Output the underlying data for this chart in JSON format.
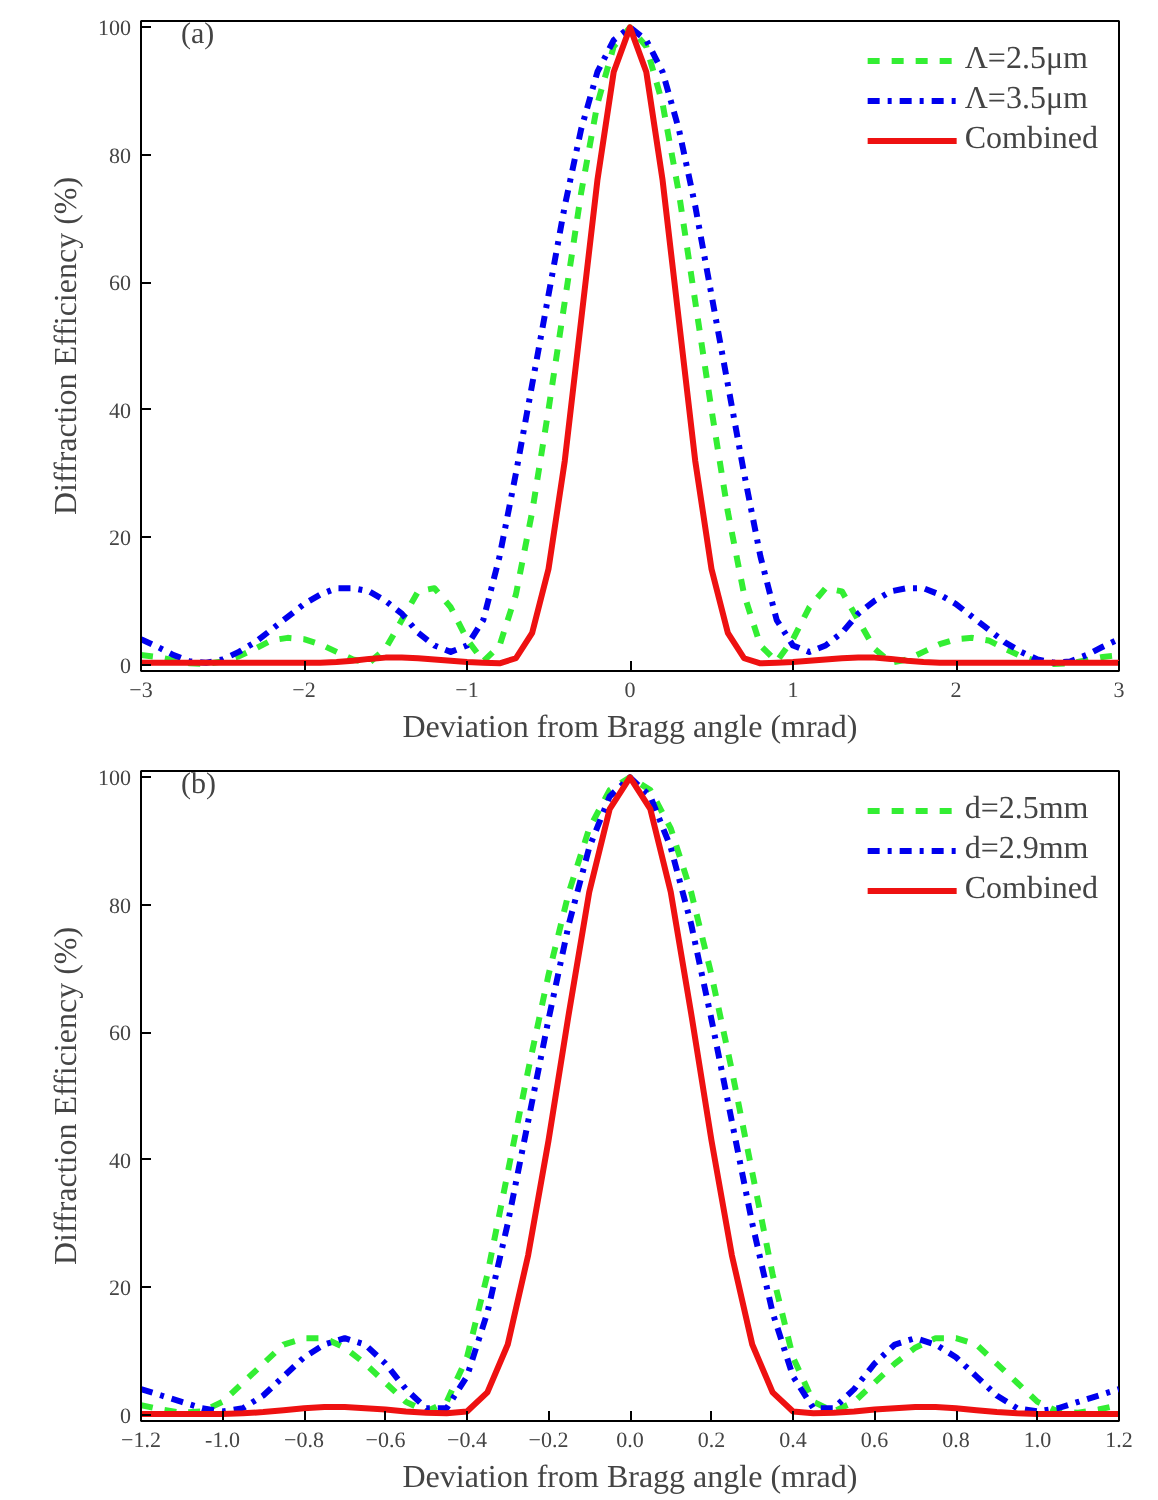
{
  "chart_data": [
    {
      "type": "line",
      "annotations": [
        "(a)"
      ],
      "xlabel": "Deviation from Bragg angle (mrad)",
      "ylabel": "Diffraction Efficiency (%)",
      "x": [
        -3,
        -2.9,
        -2.8,
        -2.7,
        -2.6,
        -2.5,
        -2.4,
        -2.3,
        -2.2,
        -2.1,
        -2,
        -1.9,
        -1.8,
        -1.7,
        -1.6,
        -1.5,
        -1.4,
        -1.3,
        -1.2,
        -1.1,
        -1,
        -0.9,
        -0.8,
        -0.7,
        -0.6,
        -0.5,
        -0.4,
        -0.3,
        -0.2,
        -0.1,
        0,
        0.1,
        0.2,
        0.3,
        0.4,
        0.5,
        0.6,
        0.7,
        0.8,
        0.9,
        1,
        1.1,
        1.2,
        1.3,
        1.4,
        1.5,
        1.6,
        1.7,
        1.8,
        1.9,
        2,
        2.1,
        2.2,
        2.3,
        2.4,
        2.5,
        2.6,
        2.7,
        2.8,
        2.9,
        3
      ],
      "xlim": [
        -3,
        3
      ],
      "ylim": [
        -1,
        101
      ],
      "xticks": [
        -3,
        -2,
        -1,
        0,
        1,
        2,
        3
      ],
      "yticks": [
        0,
        20,
        40,
        60,
        80,
        100
      ],
      "legend": "top right",
      "grid": false,
      "series": [
        {
          "name": "Λ=2.5μm",
          "color": "#33ee33",
          "line_style": "dashed",
          "values": [
            1.5,
            1.2,
            0.7,
            0.2,
            0.1,
            0.5,
            1.3,
            2.5,
            3.8,
            4.2,
            4,
            3.2,
            2,
            0.8,
            0.3,
            2.5,
            7,
            11.5,
            12,
            9,
            4,
            0.5,
            3,
            11,
            24,
            40,
            57,
            74,
            88,
            97,
            100,
            97,
            88,
            74,
            57,
            40,
            24,
            11,
            3,
            0.5,
            4,
            9,
            12,
            11.5,
            7,
            2.5,
            0.3,
            0.8,
            2,
            3.2,
            4,
            4.2,
            3.8,
            2.5,
            1.3,
            0.5,
            0.1,
            0.2,
            0.7,
            1.2,
            1.5
          ]
        },
        {
          "name": "Λ=3.5μm",
          "color": "#0000ee",
          "line_style": "dashdot",
          "values": [
            4,
            2.8,
            1.5,
            0.5,
            0.3,
            0.8,
            2,
            3.5,
            5.5,
            7.5,
            9.5,
            11,
            12,
            12,
            11.5,
            10,
            8,
            5,
            3,
            2,
            3,
            7,
            17,
            30,
            44,
            58,
            72,
            84,
            93,
            98,
            100,
            98,
            93,
            84,
            72,
            58,
            44,
            30,
            17,
            7,
            3,
            2,
            3,
            5,
            8,
            10,
            11.5,
            12,
            12,
            11,
            9.5,
            7.5,
            5.5,
            3.5,
            2,
            0.8,
            0.3,
            0.5,
            1.5,
            2.8,
            4
          ]
        },
        {
          "name": "Combined",
          "color": "#ee1111",
          "line_style": "solid",
          "values": [
            0.3,
            0.3,
            0.3,
            0.3,
            0.3,
            0.3,
            0.3,
            0.3,
            0.3,
            0.3,
            0.3,
            0.3,
            0.4,
            0.6,
            0.9,
            1.1,
            1.1,
            1,
            0.8,
            0.6,
            0.4,
            0.3,
            0.2,
            1,
            5,
            15,
            32,
            54,
            76,
            93,
            100,
            93,
            76,
            54,
            32,
            15,
            5,
            1,
            0.2,
            0.3,
            0.4,
            0.6,
            0.8,
            1,
            1.1,
            1.1,
            0.9,
            0.6,
            0.4,
            0.3,
            0.3,
            0.3,
            0.3,
            0.3,
            0.3,
            0.3,
            0.3,
            0.3,
            0.3,
            0.3,
            0.3
          ]
        }
      ]
    },
    {
      "type": "line",
      "annotations": [
        "(b)"
      ],
      "xlabel": "Deviation from Bragg angle (mrad)",
      "ylabel": "Diffraction Efficiency (%)",
      "x": [
        -1.2,
        -1.15,
        -1.1,
        -1.05,
        -1,
        -0.95,
        -0.9,
        -0.85,
        -0.8,
        -0.75,
        -0.7,
        -0.65,
        -0.6,
        -0.55,
        -0.5,
        -0.45,
        -0.4,
        -0.35,
        -0.3,
        -0.25,
        -0.2,
        -0.15,
        -0.1,
        -0.05,
        0,
        0.05,
        0.1,
        0.15,
        0.2,
        0.25,
        0.3,
        0.35,
        0.4,
        0.45,
        0.5,
        0.55,
        0.6,
        0.65,
        0.7,
        0.75,
        0.8,
        0.85,
        0.9,
        0.95,
        1,
        1.05,
        1.1,
        1.15,
        1.2
      ],
      "xlim": [
        -1.2,
        1.2
      ],
      "ylim": [
        -1,
        101
      ],
      "xticks": [
        -1.2,
        {
          "value": -1.0,
          "label": "-1.0"
        },
        -0.8,
        -0.6,
        -0.4,
        -0.2,
        {
          "value": 0,
          "label": "0.0"
        },
        0.2,
        0.4,
        0.6,
        0.8,
        {
          "value": 1.0,
          "label": "1.0"
        },
        1.2
      ],
      "yticks": [
        0,
        20,
        40,
        60,
        80,
        100
      ],
      "legend": "top right",
      "grid": false,
      "series": [
        {
          "name": "d=2.5mm",
          "color": "#33ee33",
          "line_style": "dashed",
          "values": [
            1.5,
            0.8,
            0.3,
            0.5,
            2,
            5,
            8,
            11,
            12,
            12,
            10.5,
            8,
            5,
            2,
            0.5,
            2,
            9,
            22,
            38,
            54,
            69,
            82,
            92,
            98,
            100,
            98,
            92,
            82,
            69,
            54,
            38,
            22,
            9,
            2,
            0.5,
            2,
            5,
            8,
            10.5,
            12,
            12,
            11,
            8,
            5,
            2,
            0.5,
            0.3,
            0.8,
            1.5
          ]
        },
        {
          "name": "d=2.9mm",
          "color": "#0000ee",
          "line_style": "dashdot",
          "values": [
            4,
            3,
            2,
            1,
            0.5,
            1,
            3,
            6,
            9,
            11,
            12,
            11,
            8,
            4,
            1,
            1,
            6,
            16,
            30,
            46,
            62,
            77,
            89,
            97,
            100,
            97,
            89,
            77,
            62,
            46,
            30,
            16,
            6,
            1,
            1,
            4,
            8,
            11,
            12,
            11,
            9,
            6,
            3,
            1,
            0.5,
            1,
            2,
            3,
            4
          ]
        },
        {
          "name": "Combined",
          "color": "#ee1111",
          "line_style": "solid",
          "values": [
            0.1,
            0.1,
            0.1,
            0.1,
            0.1,
            0.2,
            0.4,
            0.7,
            1,
            1.2,
            1.2,
            1,
            0.8,
            0.5,
            0.3,
            0.2,
            0.5,
            3.5,
            11,
            25,
            43,
            63,
            82,
            95,
            100,
            95,
            82,
            63,
            43,
            25,
            11,
            3.5,
            0.5,
            0.2,
            0.3,
            0.5,
            0.8,
            1,
            1.2,
            1.2,
            1,
            0.7,
            0.4,
            0.2,
            0.1,
            0.1,
            0.1,
            0.1,
            0.1
          ]
        }
      ]
    }
  ]
}
